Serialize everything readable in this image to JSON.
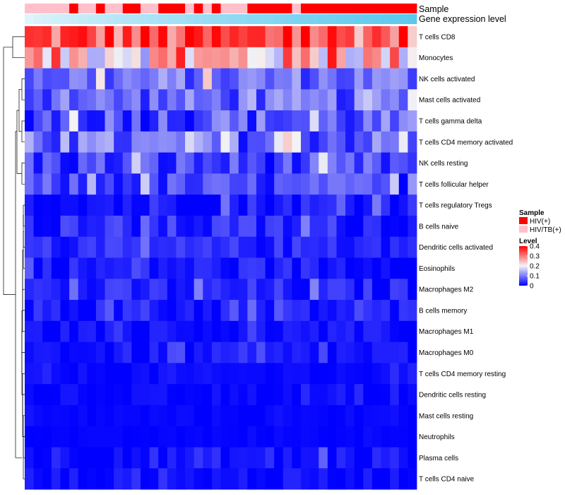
{
  "chart_data": {
    "type": "heatmap",
    "title": "",
    "annotation_tracks": [
      "Sample",
      "Gene expression level"
    ],
    "rows": [
      "T cells CD8",
      "Monocytes",
      "NK cells activated",
      "Mast cells activated",
      "T cells gamma delta",
      "T cells CD4 memory activated",
      "NK cells resting",
      "T cells follicular helper",
      "T cells regulatory  Tregs",
      "B cells naive",
      "Dendritic cells activated",
      "Eosinophils",
      "Macrophages M2",
      "B cells memory",
      "Macrophages M1",
      "Macrophages M0",
      "T cells CD4 memory resting",
      "Dendritic cells resting",
      "Mast cells resting",
      "Neutrophils",
      "Plasma cells",
      "T cells CD4 naive"
    ],
    "n_columns": 44,
    "sample_groups": {
      "HIV(+)": [
        5,
        8,
        11,
        12,
        15,
        16,
        17,
        19,
        21,
        25,
        26,
        27,
        28,
        29,
        31,
        32,
        33,
        34,
        35,
        36,
        37,
        38,
        39,
        40,
        41,
        42,
        43
      ],
      "HIV/TB(+)": [
        0,
        1,
        2,
        3,
        4,
        6,
        7,
        9,
        10,
        13,
        14,
        18,
        20,
        22,
        23,
        24,
        30
      ]
    },
    "level_range": [
      0,
      0.4
    ],
    "legend": {
      "sample_title": "Sample",
      "sample_entries": [
        {
          "label": "HIV(+)",
          "color": "#ff0000"
        },
        {
          "label": "HIV/TB(+)",
          "color": "#ffc0cb"
        }
      ],
      "level_title": "Level",
      "level_ticks": [
        "0.4",
        "0.3",
        "0.2",
        "0.1",
        "0"
      ],
      "level_tick_values": [
        0.4,
        0.3,
        0.2,
        0.1,
        0
      ],
      "placement": "right"
    },
    "colors": {
      "low": "#0000ff",
      "mid": "#f5f5f5",
      "high": "#ff0000",
      "hiv_pos": "#ff0000",
      "hiv_tb_pos": "#ffc0cb",
      "expression_low": "#e0f4fb",
      "expression_high": "#5bc8ee"
    }
  }
}
